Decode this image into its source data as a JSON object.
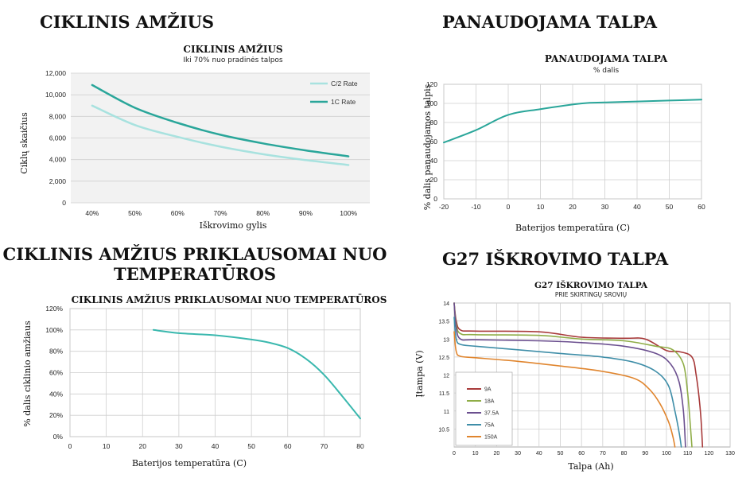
{
  "sections": {
    "cycle_life_heading": "CIKLINIS AMŽIUS",
    "usable_capacity_heading": "PANAUDOJAMA TALPA",
    "temp_life_heading_line1": "CIKLINIS AMŽIUS PRIKLAUSOMAI NUO",
    "temp_life_heading_line2": "TEMPERATŪROS",
    "discharge_heading": "G27 IŠKROVIMO TALPA"
  },
  "chart_data": [
    {
      "id": "cycle_life",
      "type": "line",
      "title": "CIKLINIS AMŽIUS",
      "subtitle": "Iki 70% nuo pradinės talpos",
      "xlabel": "Iškrovimo gylis",
      "ylabel": "Ciklų skaičius",
      "categories": [
        "40%",
        "50%",
        "60%",
        "70%",
        "80%",
        "90%",
        "100%"
      ],
      "x": [
        40,
        50,
        60,
        70,
        80,
        90,
        100
      ],
      "xlim": [
        35,
        105
      ],
      "ylim": [
        0,
        12000
      ],
      "yticks": [
        0,
        2000,
        4000,
        6000,
        8000,
        10000,
        12000
      ],
      "ytick_labels": [
        "0",
        "2,000",
        "4,000",
        "6,000",
        "8,000",
        "10,000",
        "12,000"
      ],
      "grid": true,
      "legend_position": "top-right",
      "series": [
        {
          "name": "C/2 Rate",
          "color": "#a8e2df",
          "values": [
            9000,
            7200,
            6100,
            5200,
            4500,
            3950,
            3500
          ]
        },
        {
          "name": "1C Rate",
          "color": "#2aa69a",
          "values": [
            10900,
            8800,
            7400,
            6300,
            5500,
            4850,
            4300
          ]
        }
      ]
    },
    {
      "id": "usable_capacity",
      "type": "line",
      "title": "PANAUDOJAMA TALPA",
      "subtitle": "% dalis",
      "xlabel": "Baterijos temperatūra (C)",
      "ylabel": "% dalis panaudojamos talpis",
      "xlim": [
        -20,
        60
      ],
      "xticks": [
        -20,
        -10,
        0,
        10,
        20,
        30,
        40,
        50,
        60
      ],
      "ylim": [
        0,
        120
      ],
      "yticks": [
        0,
        20,
        40,
        60,
        80,
        100,
        120
      ],
      "grid": true,
      "series": [
        {
          "color": "#2aa69a",
          "x": [
            -20,
            -10,
            0,
            10,
            23,
            30,
            40,
            50,
            60
          ],
          "values": [
            59,
            72,
            88,
            94,
            100,
            101,
            102,
            103,
            104
          ]
        }
      ]
    },
    {
      "id": "cycle_life_temperature",
      "type": "line",
      "title": "CIKLINIS AMŽIUS PRIKLAUSOMAI NUO TEMPERATŪROS",
      "xlabel": "Baterijos temperatūra (C)",
      "ylabel": "% dalis ciklinio amžiaus",
      "xlim": [
        0,
        80
      ],
      "xticks": [
        0,
        10,
        20,
        30,
        40,
        50,
        60,
        70,
        80
      ],
      "ylim": [
        0,
        120
      ],
      "yticks": [
        0,
        20,
        40,
        60,
        80,
        100,
        120
      ],
      "ytick_labels": [
        "0%",
        "20%",
        "40%",
        "60%",
        "80%",
        "100%",
        "120%"
      ],
      "grid": true,
      "series": [
        {
          "color": "#3ab8ae",
          "x": [
            23,
            30,
            40,
            50,
            55,
            60,
            65,
            70,
            75,
            80
          ],
          "values": [
            100,
            97,
            95,
            91,
            88,
            83,
            73,
            58,
            38,
            17
          ]
        }
      ]
    },
    {
      "id": "g27_discharge",
      "type": "line",
      "title": "G27 IŠKROVIMO TALPA",
      "subtitle": "PRIE SKIRTINGŲ SROVIŲ",
      "xlabel": "Talpa (Ah)",
      "ylabel": "Įtampa (V)",
      "xlim": [
        0,
        130
      ],
      "xticks": [
        0,
        10,
        20,
        30,
        40,
        50,
        60,
        70,
        80,
        90,
        100,
        110,
        120,
        130
      ],
      "ylim": [
        10,
        14
      ],
      "yticks": [
        10.5,
        11,
        11.5,
        12,
        12.5,
        13,
        13.5,
        14
      ],
      "grid": true,
      "legend_position": "bottom-left",
      "series": [
        {
          "name": "9A",
          "color": "#a83a3a",
          "x": [
            0,
            1,
            3,
            10,
            40,
            60,
            80,
            90,
            100,
            106,
            112,
            114,
            116,
            117
          ],
          "values": [
            14,
            13.5,
            13.25,
            13.22,
            13.2,
            13.05,
            13.02,
            13.0,
            12.68,
            12.65,
            12.5,
            12.0,
            11.0,
            10.0
          ]
        },
        {
          "name": "18A",
          "color": "#8fad47",
          "x": [
            0,
            1,
            3,
            10,
            40,
            60,
            80,
            95,
            103,
            108,
            110,
            111,
            112
          ],
          "values": [
            14,
            13.4,
            13.15,
            13.12,
            13.1,
            13.0,
            12.95,
            12.8,
            12.7,
            12.3,
            11.5,
            10.8,
            10.0
          ]
        },
        {
          "name": "37.5A",
          "color": "#6b4f8f",
          "x": [
            0,
            1,
            3,
            10,
            40,
            60,
            80,
            95,
            102,
            106,
            108,
            109
          ],
          "values": [
            14,
            13.3,
            13.0,
            12.98,
            12.95,
            12.9,
            12.8,
            12.6,
            12.3,
            11.8,
            11.0,
            10.0
          ]
        },
        {
          "name": "75A",
          "color": "#3f8ea8",
          "x": [
            0,
            1,
            3,
            10,
            30,
            50,
            70,
            85,
            95,
            101,
            104,
            106,
            107
          ],
          "values": [
            13.6,
            13.0,
            12.85,
            12.8,
            12.7,
            12.6,
            12.5,
            12.35,
            12.1,
            11.7,
            11.0,
            10.4,
            10.0
          ]
        },
        {
          "name": "150A",
          "color": "#e0852e",
          "x": [
            0,
            1,
            3,
            10,
            30,
            50,
            70,
            85,
            92,
            97,
            101,
            103,
            104
          ],
          "values": [
            13.2,
            12.65,
            12.52,
            12.48,
            12.38,
            12.25,
            12.1,
            11.9,
            11.6,
            11.2,
            10.7,
            10.3,
            10.0
          ]
        }
      ]
    }
  ]
}
